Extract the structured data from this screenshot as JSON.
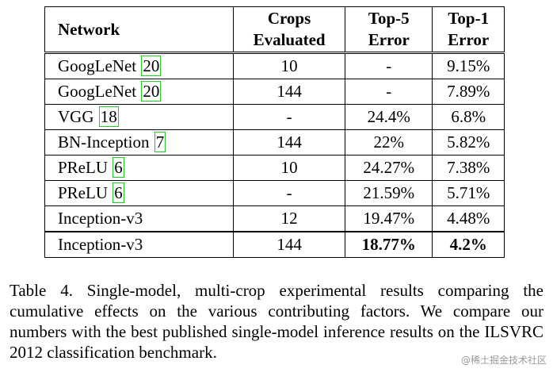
{
  "table": {
    "headers": {
      "network": "Network",
      "crops_line1": "Crops",
      "crops_line2": "Evaluated",
      "top5_line1": "Top-5",
      "top5_line2": "Error",
      "top1_line1": "Top-1",
      "top1_line2": "Error"
    },
    "rows": [
      {
        "network": "GoogLeNet",
        "cite": "20",
        "crops": "10",
        "top5": "-",
        "top1": "9.15%"
      },
      {
        "network": "GoogLeNet",
        "cite": "20",
        "crops": "144",
        "top5": "-",
        "top1": "7.89%"
      },
      {
        "network": "VGG",
        "cite": "18",
        "crops": "-",
        "top5": "24.4%",
        "top1": "6.8%"
      },
      {
        "network": "BN-Inception",
        "cite": "7",
        "crops": "144",
        "top5": "22%",
        "top1": "5.82%"
      },
      {
        "network": "PReLU",
        "cite": "6",
        "crops": "10",
        "top5": "24.27%",
        "top1": "7.38%"
      },
      {
        "network": "PReLU",
        "cite": "6",
        "crops": "-",
        "top5": "21.59%",
        "top1": "5.71%"
      },
      {
        "network": "Inception-v3",
        "cite": "",
        "crops": "12",
        "top5": "19.47%",
        "top1": "4.48%"
      },
      {
        "network": "Inception-v3",
        "cite": "",
        "crops": "144",
        "top5": "18.77%",
        "top1": "4.2%"
      }
    ]
  },
  "caption": "Table 4. Single-model, multi-crop experimental results comparing the cumulative effects on the various contributing factors. We compare our numbers with the best published single-model inference results on the ILSVRC 2012 classification benchmark.",
  "watermark": "@稀土掘金技术社区",
  "colors": {
    "citation_box": "#22cc22"
  }
}
